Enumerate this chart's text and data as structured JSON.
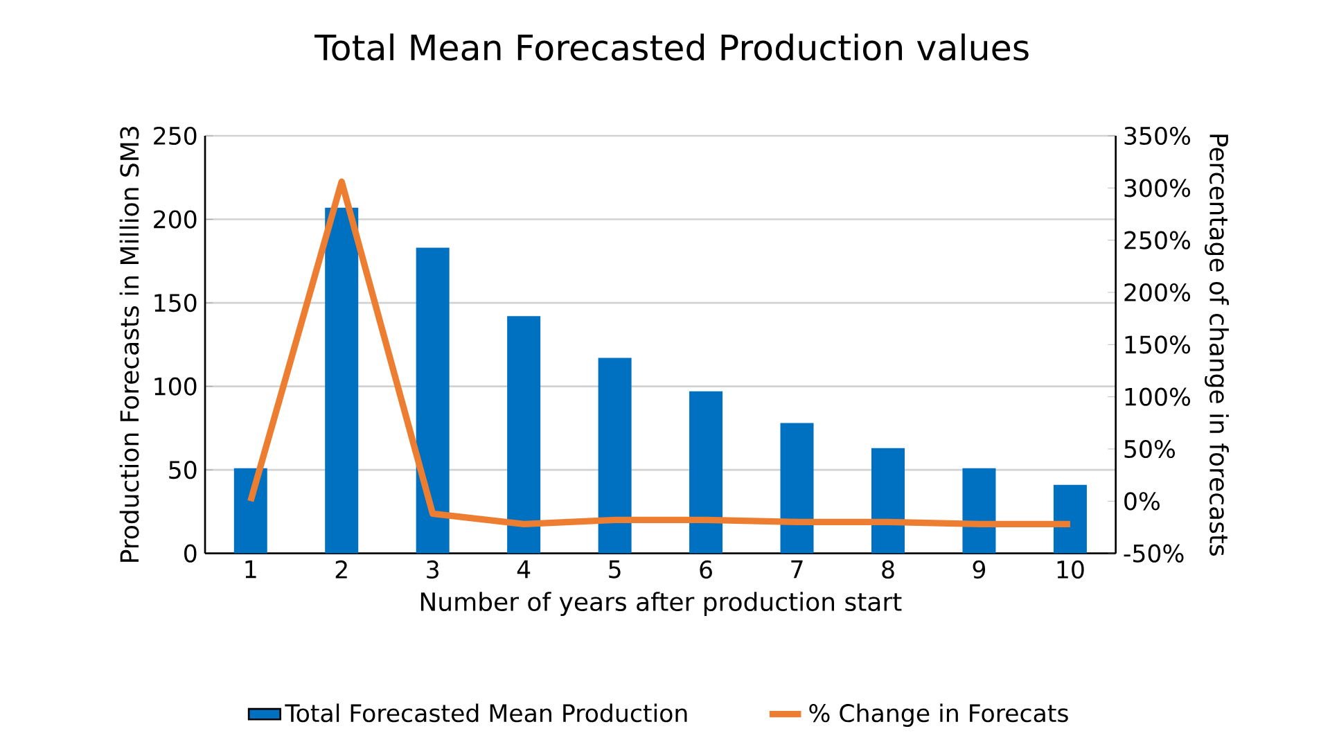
{
  "chart_data": {
    "type": "bar",
    "title": "Total Mean Forecasted Production values",
    "xlabel": "Number of years after production start",
    "ylabel": "Production Forecasts in Million SM3",
    "y2label": "Percentage of change in forecasts",
    "categories": [
      "1",
      "2",
      "3",
      "4",
      "5",
      "6",
      "7",
      "8",
      "9",
      "10"
    ],
    "series": [
      {
        "name": "Total Forecasted Mean Production",
        "color": "#0070c0",
        "values": [
          51,
          207,
          183,
          142,
          117,
          97,
          78,
          63,
          51,
          41
        ]
      },
      {
        "name": "% Change in Forecats",
        "type": "line",
        "axis": "y2",
        "color": "#ed7d31",
        "values": [
          0,
          306,
          -12,
          -22,
          -18,
          -18,
          -20,
          -20,
          -22,
          -22
        ]
      }
    ],
    "ylim": [
      0,
      250
    ],
    "yticks": [
      0,
      50,
      100,
      150,
      200,
      250
    ],
    "y2lim": [
      -50,
      350
    ],
    "y2ticks": [
      {
        "value": -50,
        "label": "-50%"
      },
      {
        "value": 0,
        "label": "0%"
      },
      {
        "value": 50,
        "label": "50%"
      },
      {
        "value": 100,
        "label": "100%"
      },
      {
        "value": 150,
        "label": "150%"
      },
      {
        "value": 200,
        "label": "200%"
      },
      {
        "value": 250,
        "label": "250%"
      },
      {
        "value": 300,
        "label": "300%"
      },
      {
        "value": 350,
        "label": "350%"
      }
    ],
    "grid": "y",
    "legend": "bottom",
    "marker": "none",
    "line_style": "solid"
  }
}
